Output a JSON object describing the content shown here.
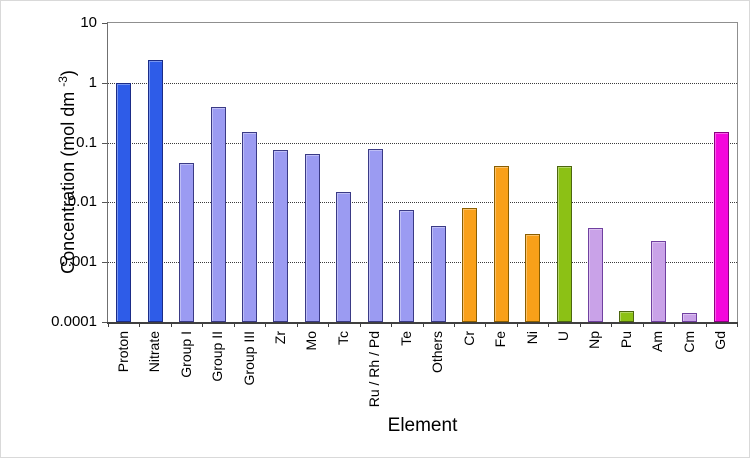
{
  "chart_data": {
    "type": "bar",
    "title": "",
    "xlabel": "Element",
    "ylabel": "Concentration (mol dm -3)",
    "ylabel_parts": {
      "prefix": "Concentration (mol dm ",
      "superscript": "-3",
      "suffix": ")"
    },
    "yscale": "log",
    "ylim": [
      0.0001,
      10
    ],
    "grid": "horizontal-dotted",
    "legend_position": "none",
    "yticks": [
      {
        "label": "10",
        "value": 10
      },
      {
        "label": "1",
        "value": 1
      },
      {
        "label": "0.1",
        "value": 0.1
      },
      {
        "label": "0.01",
        "value": 0.01
      },
      {
        "label": "0.001",
        "value": 0.001
      },
      {
        "label": "0.0001",
        "value": 0.0001
      }
    ],
    "gridline_values": [
      1,
      0.1,
      0.01,
      0.001
    ],
    "colors": {
      "blue": {
        "fill": "#2E5CE8",
        "border": "#1B2C87"
      },
      "periwinkle": {
        "fill": "#9B9BF2",
        "border": "#3A3A85"
      },
      "orange": {
        "fill": "#F9A019",
        "border": "#8A5E00"
      },
      "green": {
        "fill": "#8CC115",
        "border": "#4C660F"
      },
      "lilac": {
        "fill": "#C9A2E8",
        "border": "#7040A0"
      },
      "magenta": {
        "fill": "#F407DC",
        "border": "#8B0080"
      }
    },
    "categories": [
      "Proton",
      "Nitrate",
      "Group I",
      "Group II",
      "Group III",
      "Zr",
      "Mo",
      "Tc",
      "Ru / Rh / Pd",
      "Te",
      "Others",
      "Cr",
      "Fe",
      "Ni",
      "U",
      "Np",
      "Pu",
      "Am",
      "Cm",
      "Gd"
    ],
    "bars": [
      {
        "label": "Proton",
        "value": 1.0,
        "color_key": "blue"
      },
      {
        "label": "Nitrate",
        "value": 2.4,
        "color_key": "blue"
      },
      {
        "label": "Group I",
        "value": 0.045,
        "color_key": "periwinkle"
      },
      {
        "label": "Group II",
        "value": 0.4,
        "color_key": "periwinkle"
      },
      {
        "label": "Group III",
        "value": 0.15,
        "color_key": "periwinkle"
      },
      {
        "label": "Zr",
        "value": 0.075,
        "color_key": "periwinkle"
      },
      {
        "label": "Mo",
        "value": 0.065,
        "color_key": "periwinkle"
      },
      {
        "label": "Tc",
        "value": 0.015,
        "color_key": "periwinkle"
      },
      {
        "label": "Ru / Rh / Pd",
        "value": 0.078,
        "color_key": "periwinkle"
      },
      {
        "label": "Te",
        "value": 0.0075,
        "color_key": "periwinkle"
      },
      {
        "label": "Others",
        "value": 0.004,
        "color_key": "periwinkle"
      },
      {
        "label": "Cr",
        "value": 0.008,
        "color_key": "orange"
      },
      {
        "label": "Fe",
        "value": 0.04,
        "color_key": "orange"
      },
      {
        "label": "Ni",
        "value": 0.003,
        "color_key": "orange"
      },
      {
        "label": "U",
        "value": 0.04,
        "color_key": "green"
      },
      {
        "label": "Np",
        "value": 0.0037,
        "color_key": "lilac"
      },
      {
        "label": "Pu",
        "value": 0.00015,
        "color_key": "green"
      },
      {
        "label": "Am",
        "value": 0.0023,
        "color_key": "lilac"
      },
      {
        "label": "Cm",
        "value": 0.00014,
        "color_key": "lilac"
      },
      {
        "label": "Gd",
        "value": 0.15,
        "color_key": "magenta"
      }
    ]
  }
}
